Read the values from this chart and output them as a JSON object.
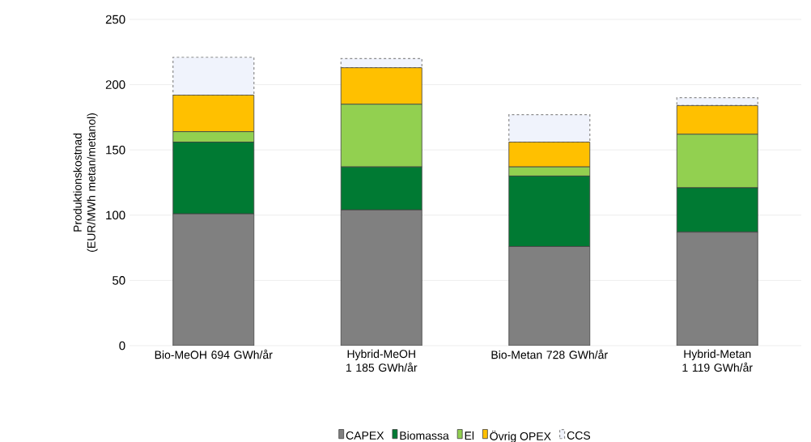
{
  "chart_data": {
    "type": "bar",
    "stacked": true,
    "ylabel": "Produktionskostnad (EUR/MWh metan/metanol)",
    "categories": [
      "Bio-MeOH 694 GWh/år",
      "Hybrid-MeOH 1 185 GWh/år",
      "Bio-Metan 728 GWh/år",
      "Hybrid-Metan 1 119 GWh/år"
    ],
    "series": [
      {
        "name": "CAPEX",
        "color": "#808080",
        "values": [
          101,
          104,
          76,
          87
        ]
      },
      {
        "name": "Biomassa",
        "color": "#007a33",
        "values": [
          55,
          33,
          54,
          34
        ]
      },
      {
        "name": "El",
        "color": "#92d050",
        "values": [
          8,
          48,
          7,
          41
        ]
      },
      {
        "name": "Övrig OPEX",
        "color": "#ffc000",
        "values": [
          28,
          28,
          19,
          22
        ]
      },
      {
        "name": "CCS",
        "color": "#f0f3fc",
        "line_style": "dashed",
        "values": [
          29,
          7,
          21,
          6
        ]
      }
    ],
    "ylim": [
      0,
      250
    ],
    "yticks": [
      0,
      50,
      100,
      150,
      200,
      250
    ],
    "grid": "y",
    "legend": "bottom"
  }
}
